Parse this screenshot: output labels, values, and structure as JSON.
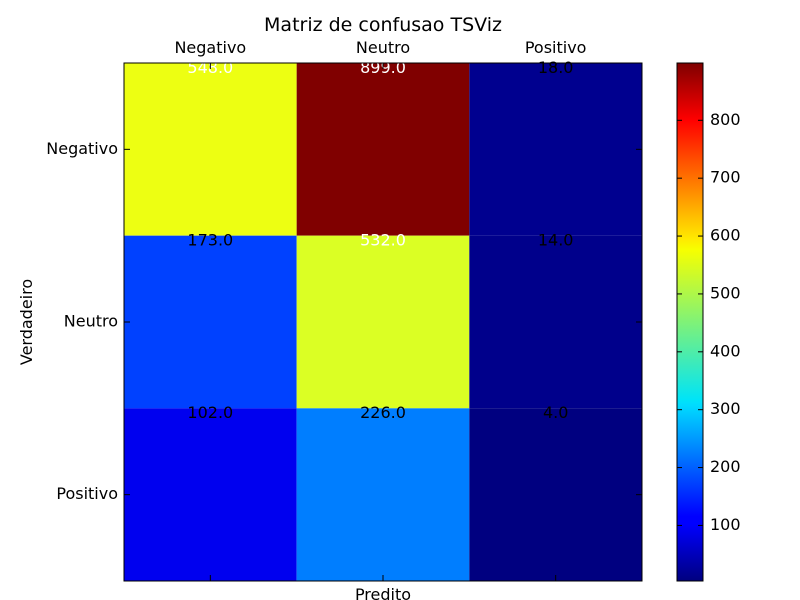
{
  "chart_data": {
    "type": "heatmap",
    "title": "Matriz de confusao TSViz",
    "xlabel": "Predito",
    "ylabel": "Verdadeiro",
    "x_categories": [
      "Negativo",
      "Neutro",
      "Positivo"
    ],
    "y_categories": [
      "Negativo",
      "Neutro",
      "Positivo"
    ],
    "values": [
      [
        548.0,
        899.0,
        18.0
      ],
      [
        173.0,
        532.0,
        14.0
      ],
      [
        102.0,
        226.0,
        4.0
      ]
    ],
    "cell_labels": [
      [
        "548.0",
        "899.0",
        "18.0"
      ],
      [
        "173.0",
        "532.0",
        "14.0"
      ],
      [
        "102.0",
        "226.0",
        "4.0"
      ]
    ],
    "value_range": [
      4.0,
      899.0
    ],
    "colormap": "jet",
    "colorbar_ticks": [
      100,
      200,
      300,
      400,
      500,
      600,
      700,
      800
    ],
    "x_tick_position": "top",
    "grid": false,
    "annotation_colors": {
      "light": "#ffffff",
      "dark": "#000000"
    },
    "annotation_threshold": 449.5
  }
}
